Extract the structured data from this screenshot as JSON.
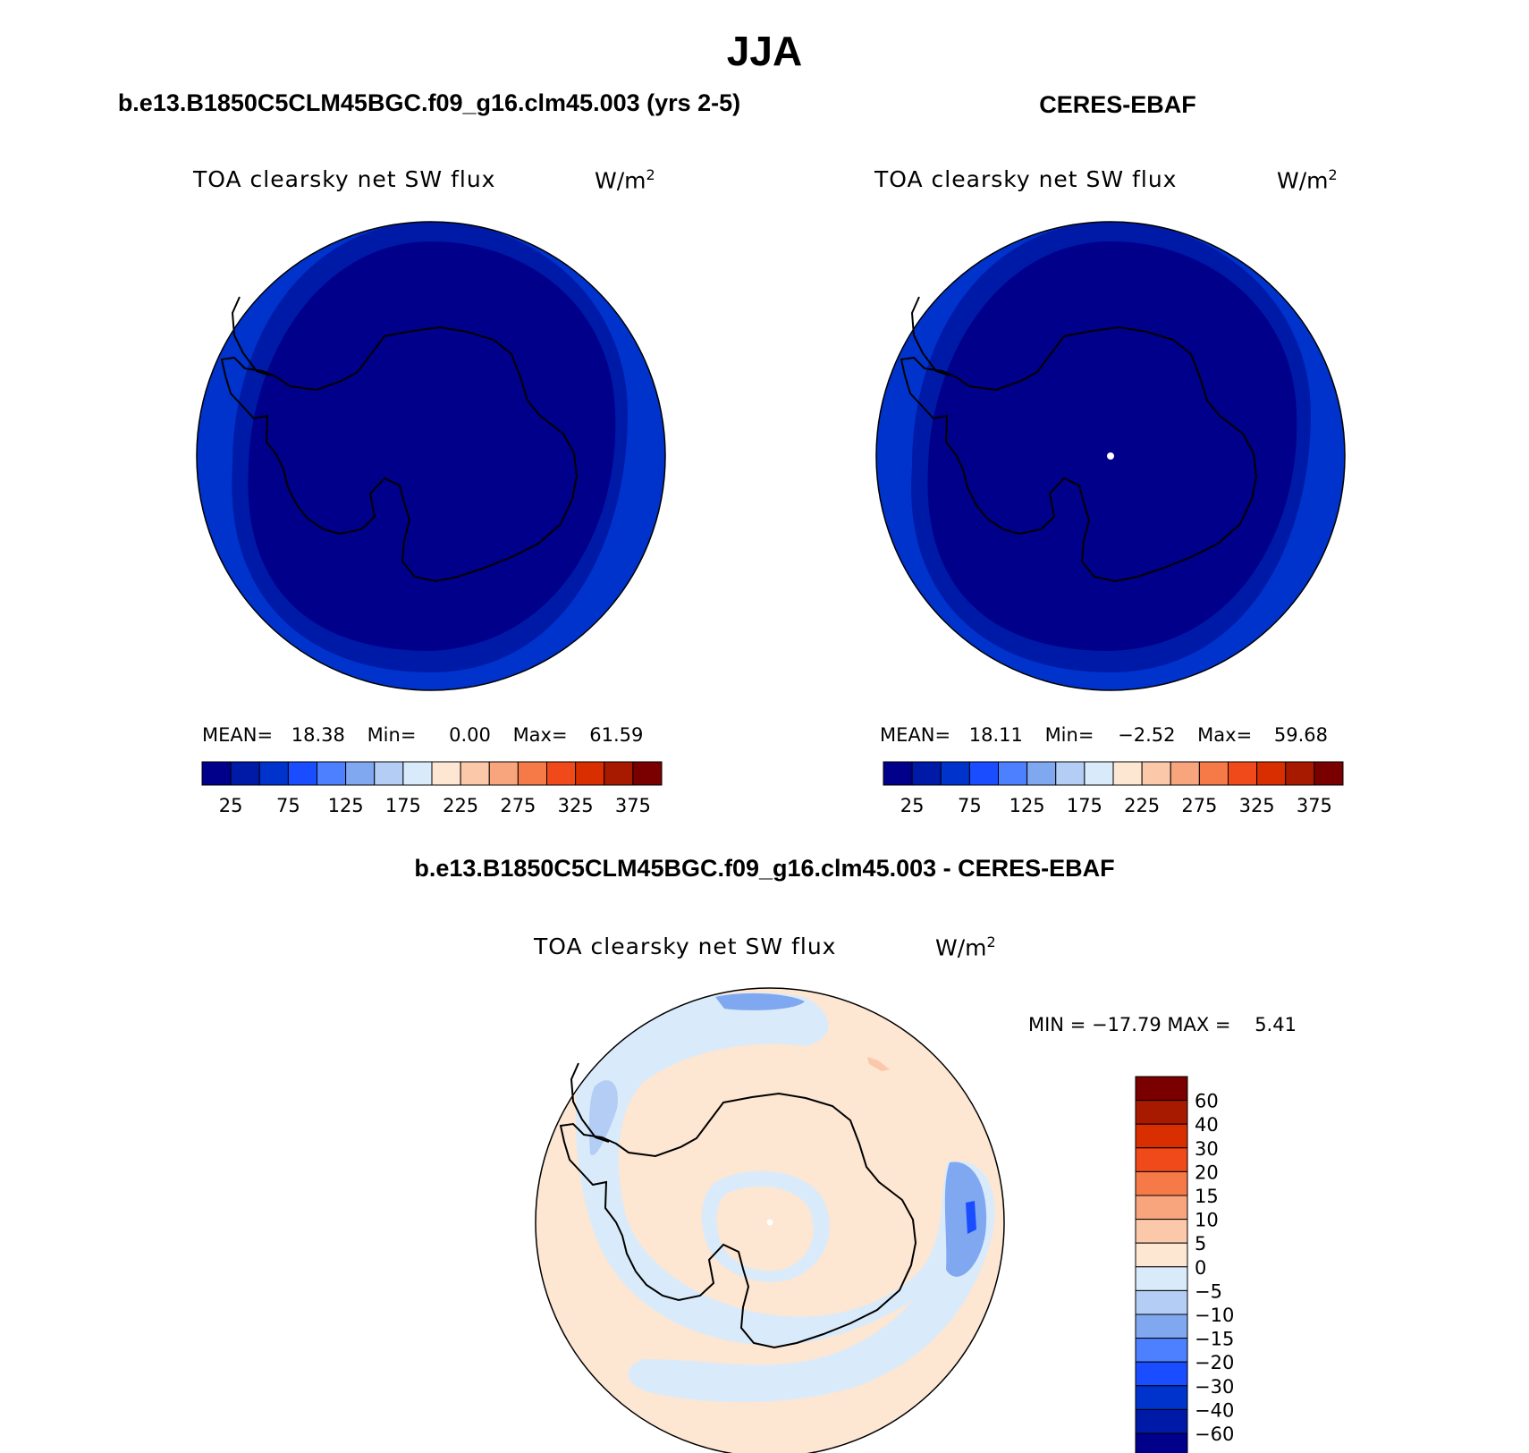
{
  "page": {
    "season": "JJA"
  },
  "panels": [
    {
      "id": "model",
      "title": "b.e13.B1850C5CLM45BGC.f09_g16.clm45.003 (yrs 2-5)",
      "variable": "TOA clearsky net SW flux",
      "units": "W/m",
      "units_sup": "2",
      "stats": {
        "mean_label": "MEAN=",
        "mean": "18.38",
        "min_label": "Min=",
        "min": "0.00",
        "max_label": "Max=",
        "max": "61.59"
      }
    },
    {
      "id": "obs",
      "title": "CERES-EBAF",
      "variable": "TOA clearsky net SW flux",
      "units": "W/m",
      "units_sup": "2",
      "stats": {
        "mean_label": "MEAN=",
        "mean": "18.11",
        "min_label": "Min=",
        "min": "−2.52",
        "max_label": "Max=",
        "max": "59.68"
      }
    }
  ],
  "abs_colorbar": {
    "colors": [
      "#00008b",
      "#001aa8",
      "#0033cc",
      "#1a4dff",
      "#4d80ff",
      "#80a8f0",
      "#b3cdf5",
      "#d9ebfa",
      "#fde6d2",
      "#fbc8aa",
      "#f8a47c",
      "#f57a48",
      "#f04a1a",
      "#d92e00",
      "#a81a00",
      "#7a0000"
    ],
    "labels": [
      "25",
      "75",
      "125",
      "175",
      "225",
      "275",
      "325",
      "375"
    ]
  },
  "diff_panel": {
    "title": "b.e13.B1850C5CLM45BGC.f09_g16.clm45.003 - CERES-EBAF",
    "variable": "TOA clearsky net SW flux",
    "units": "W/m",
    "units_sup": "2",
    "minmax": "MIN = −17.79 MAX =    5.41"
  },
  "diff_colorbar": {
    "colors": [
      "#00008b",
      "#001aa8",
      "#0033cc",
      "#1a4dff",
      "#4d80ff",
      "#80a8f0",
      "#b3cdf5",
      "#d9ebfa",
      "#fde6d2",
      "#fbc8aa",
      "#f8a47c",
      "#f57a48",
      "#f04a1a",
      "#d92e00",
      "#a81a00",
      "#7a0000"
    ],
    "labels": [
      "−60",
      "−40",
      "−30",
      "−20",
      "−15",
      "−10",
      "−5",
      "0",
      "5",
      "10",
      "15",
      "20",
      "30",
      "40",
      "60"
    ]
  }
}
